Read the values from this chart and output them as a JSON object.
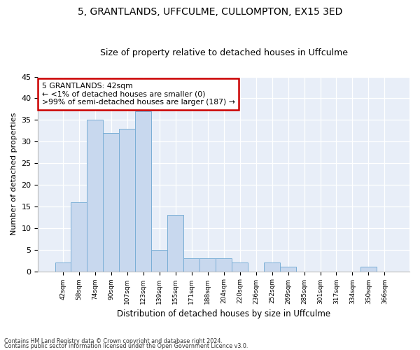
{
  "title1": "5, GRANTLANDS, UFFCULME, CULLOMPTON, EX15 3ED",
  "title2": "Size of property relative to detached houses in Uffculme",
  "xlabel": "Distribution of detached houses by size in Uffculme",
  "ylabel": "Number of detached properties",
  "categories": [
    "42sqm",
    "58sqm",
    "74sqm",
    "90sqm",
    "107sqm",
    "123sqm",
    "139sqm",
    "155sqm",
    "171sqm",
    "188sqm",
    "204sqm",
    "220sqm",
    "236sqm",
    "252sqm",
    "269sqm",
    "285sqm",
    "301sqm",
    "317sqm",
    "334sqm",
    "350sqm",
    "366sqm"
  ],
  "values": [
    2,
    16,
    35,
    32,
    33,
    37,
    5,
    13,
    3,
    3,
    3,
    2,
    0,
    2,
    1,
    0,
    0,
    0,
    0,
    1,
    0
  ],
  "bar_color": "#c8d8ee",
  "bar_edge_color": "#7aaed6",
  "annotation_title": "5 GRANTLANDS: 42sqm",
  "annotation_line1": "← <1% of detached houses are smaller (0)",
  "annotation_line2": ">99% of semi-detached houses are larger (187) →",
  "footer1": "Contains HM Land Registry data © Crown copyright and database right 2024.",
  "footer2": "Contains public sector information licensed under the Open Government Licence v3.0.",
  "ylim": [
    0,
    45
  ],
  "yticks": [
    0,
    5,
    10,
    15,
    20,
    25,
    30,
    35,
    40,
    45
  ],
  "bg_color": "#e8eef8",
  "annotation_box_color": "#ffffff",
  "annotation_box_edge": "#cc0000"
}
